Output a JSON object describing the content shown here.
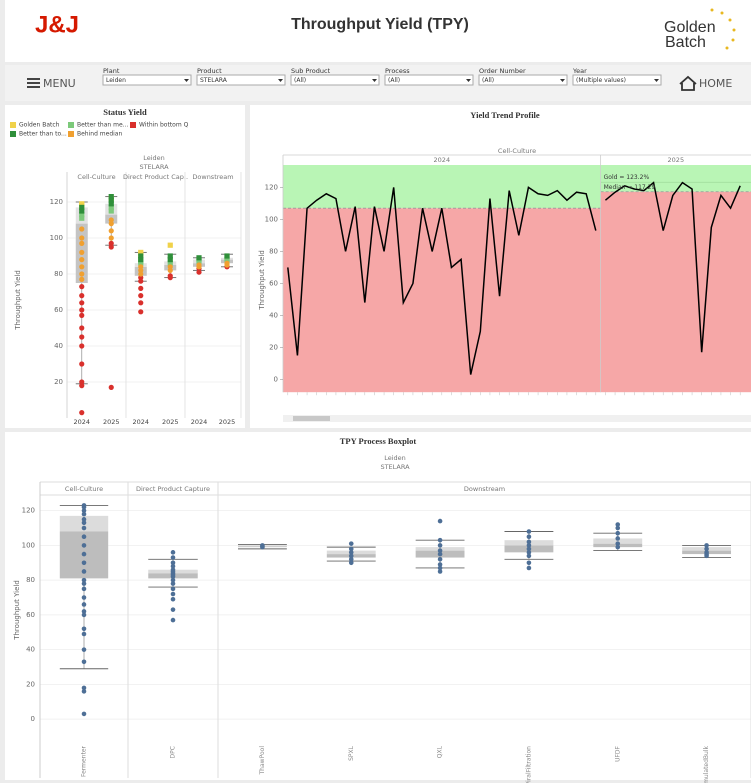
{
  "header": {
    "logo": "J&J",
    "title": "Throughput Yield (TPY)",
    "brand": [
      "Golden",
      "Batch"
    ]
  },
  "nav": {
    "menu": "MENU",
    "home": "HOME",
    "filters": [
      {
        "label": "Plant",
        "value": "Leiden"
      },
      {
        "label": "Product",
        "value": "STELARA"
      },
      {
        "label": "Sub Product",
        "value": "(All)"
      },
      {
        "label": "Process",
        "value": "(All)"
      },
      {
        "label": "Order Number",
        "value": "(All)"
      },
      {
        "label": "Year",
        "value": "(Multiple values)"
      }
    ]
  },
  "chart_data": [
    {
      "type": "strip-box",
      "title": "Status Yield",
      "subtitle": [
        "Leiden",
        "STELARA"
      ],
      "y_label": "Throughput Yield",
      "ylim": [
        0,
        130
      ],
      "yticks": [
        20,
        40,
        60,
        80,
        100,
        120
      ],
      "grid": true,
      "legend": [
        {
          "name": "Golden Batch",
          "color": "#f0d24a",
          "shape": "square"
        },
        {
          "name": "Better than me...",
          "color": "#7cc97a",
          "shape": "square"
        },
        {
          "name": "Within bottom Q",
          "color": "#d9302c",
          "shape": "circle"
        },
        {
          "name": "Better than to...",
          "color": "#2f8f3a",
          "shape": "square"
        },
        {
          "name": "Behind median",
          "color": "#f0a030",
          "shape": "circle"
        }
      ],
      "groups": [
        {
          "name": "Cell-Culture",
          "cells": [
            {
              "year": "2024",
              "box": {
                "min": 19,
                "q1": 75,
                "median": 108,
                "q3": 117,
                "max": 120
              },
              "values": [
                [
                  119,
                  118
                ],
                [
                  113,
                  111
                ],
                [
                  73,
                  68,
                  64,
                  60,
                  57,
                  50,
                  45,
                  40,
                  30,
                  20,
                  18,
                  3
                ],
                [
                  117,
                  115
                ],
                [
                  105,
                  100,
                  97,
                  92,
                  88,
                  84,
                  80,
                  77
                ]
              ]
            },
            {
              "year": "2025",
              "box": {
                "min": 96,
                "q1": 108,
                "median": 113,
                "q3": 119,
                "max": 123
              },
              "values": [
                [
                  122
                ],
                [
                  117,
                  115
                ],
                [
                  97,
                  95,
                  17
                ],
                [
                  123,
                  121,
                  119
                ],
                [
                  110,
                  108,
                  104,
                  100
                ]
              ]
            }
          ]
        },
        {
          "name": "Direct Product Cap..",
          "cells": [
            {
              "year": "2024",
              "box": {
                "min": 76,
                "q1": 79,
                "median": 84,
                "q3": 86,
                "max": 92
              },
              "values": [
                [
                  92,
                  91
                ],
                [
                  87,
                  86
                ],
                [
                  78,
                  76,
                  72,
                  68,
                  64,
                  59
                ],
                [
                  90,
                  88
                ],
                [
                  84,
                  82,
                  80
                ]
              ]
            },
            {
              "year": "2025",
              "box": {
                "min": 78,
                "q1": 82,
                "median": 85,
                "q3": 87,
                "max": 91
              },
              "values": [
                [
                  96
                ],
                [
                  86
                ],
                [
                  79,
                  78
                ],
                [
                  90,
                  88
                ],
                [
                  84,
                  82
                ]
              ]
            }
          ]
        },
        {
          "name": "Downstream",
          "cells": [
            {
              "year": "2024",
              "box": {
                "min": 82,
                "q1": 84,
                "median": 86,
                "q3": 88,
                "max": 89
              },
              "values": [
                [],
                [
                  88,
                  87
                ],
                [
                  83,
                  81
                ],
                [
                  89
                ],
                [
                  85,
                  84
                ]
              ]
            },
            {
              "year": "2025",
              "box": {
                "min": 84,
                "q1": 86,
                "median": 88,
                "q3": 89,
                "max": 91
              },
              "values": [
                [],
                [
                  89,
                  88
                ],
                [
                  84
                ],
                [
                  90
                ],
                [
                  86,
                  85
                ]
              ]
            }
          ]
        }
      ]
    },
    {
      "type": "line",
      "title": "Yield Trend Profile",
      "header": "Cell-Culture",
      "y_label": "Throughput Yield",
      "ylim": [
        -8,
        134
      ],
      "yticks": [
        0,
        20,
        40,
        60,
        80,
        100,
        120
      ],
      "grid": false,
      "color": "#000000",
      "above_color": "#b9f5b5",
      "below_color": "#f6a7a7",
      "series": [
        {
          "name": "2024",
          "median": 107,
          "values": [
            70,
            15,
            107,
            112,
            116,
            113,
            80,
            108,
            48,
            108,
            80,
            120,
            48,
            60,
            107,
            80,
            107,
            70,
            75,
            3,
            30,
            113,
            52,
            118,
            90,
            120,
            116,
            115,
            118,
            112,
            117,
            116,
            93
          ]
        },
        {
          "name": "2025",
          "median": 117.29,
          "gold": 123.2,
          "annotations": [
            "Gold = 123.2%",
            "Median = 117.29"
          ],
          "values": [
            112,
            117,
            121,
            119,
            118,
            123,
            93,
            115,
            123,
            119,
            17,
            95,
            115,
            107,
            121
          ]
        }
      ]
    },
    {
      "type": "box",
      "title": "TPY Process Boxplot",
      "subtitle": [
        "Leiden",
        "STELARA"
      ],
      "y_label": "Throughput Yield",
      "ylim": [
        -12,
        129
      ],
      "yticks": [
        0,
        20,
        40,
        60,
        80,
        100,
        120
      ],
      "grid": true,
      "color": "#4e6f96",
      "groups": [
        {
          "name": "Cell-Culture",
          "items": [
            {
              "name": "Fermenter",
              "box": {
                "min": 29,
                "q1": 81,
                "median": 108,
                "q3": 117,
                "max": 123
              },
              "values": [
                123,
                122,
                120,
                118,
                115,
                113,
                110,
                105,
                100,
                95,
                90,
                85,
                80,
                78,
                75,
                70,
                66,
                62,
                60,
                52,
                49,
                40,
                33,
                18,
                16,
                3
              ]
            }
          ]
        },
        {
          "name": "Direct Product Capture",
          "items": [
            {
              "name": "DPC",
              "box": {
                "min": 76,
                "q1": 81,
                "median": 84,
                "q3": 86,
                "max": 92
              },
              "values": [
                96,
                93,
                90,
                88,
                86,
                85,
                84,
                83,
                82,
                80,
                78,
                75,
                72,
                69,
                63,
                57
              ]
            }
          ]
        },
        {
          "name": "Downstream",
          "items": [
            {
              "name": "ThawPool",
              "box": {
                "min": 98,
                "q1": 99,
                "median": 99.5,
                "q3": 100,
                "max": 100.5
              },
              "values": [
                99,
                100,
                99.5
              ]
            },
            {
              "name": "SPXL",
              "box": {
                "min": 91,
                "q1": 93,
                "median": 95,
                "q3": 97,
                "max": 99
              },
              "values": [
                101,
                98,
                96,
                94,
                92,
                90
              ]
            },
            {
              "name": "QXL",
              "box": {
                "min": 87,
                "q1": 93,
                "median": 97,
                "q3": 99,
                "max": 103
              },
              "values": [
                114,
                103,
                100,
                97,
                95,
                92,
                89,
                87,
                85
              ]
            },
            {
              "name": "ViralFiltration",
              "box": {
                "min": 92,
                "q1": 96,
                "median": 100,
                "q3": 103,
                "max": 108
              },
              "values": [
                108,
                105,
                102,
                100,
                98,
                96,
                94,
                90,
                87
              ]
            },
            {
              "name": "UFDF",
              "box": {
                "min": 97,
                "q1": 99,
                "median": 101,
                "q3": 104,
                "max": 107
              },
              "values": [
                112,
                110,
                107,
                104,
                101,
                99
              ]
            },
            {
              "name": "FormulatedBulk",
              "box": {
                "min": 93,
                "q1": 95,
                "median": 97,
                "q3": 99,
                "max": 100
              },
              "values": [
                100,
                98,
                96,
                95,
                94
              ]
            }
          ]
        }
      ]
    }
  ]
}
